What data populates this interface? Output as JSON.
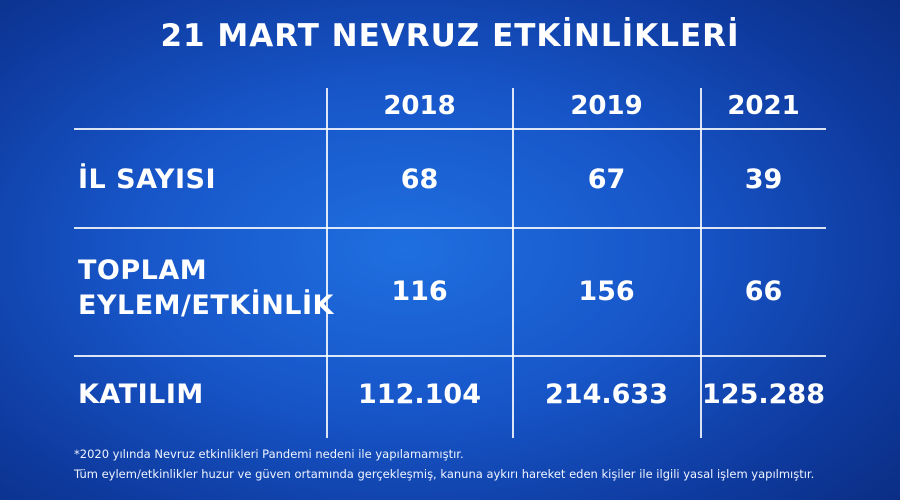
{
  "title": "21 MART NEVRUZ ETKİNLİKLERİ",
  "chart_data": {
    "type": "table",
    "columns": [
      "2018",
      "2019",
      "2021"
    ],
    "rows": [
      {
        "label": "İL SAYISI",
        "values": [
          "68",
          "67",
          "39"
        ]
      },
      {
        "label_lines": [
          "TOPLAM",
          "EYLEM/ETKİNLİK"
        ],
        "values": [
          "116",
          "156",
          "66"
        ]
      },
      {
        "label": "KATILIM",
        "values": [
          "112.104",
          "214.633",
          "125.288"
        ]
      }
    ]
  },
  "footnotes": [
    "*2020 yılında Nevruz etkinlikleri Pandemi nedeni ile yapılamamıştır.",
    "Tüm eylem/etkinlikler huzur ve güven ortamında gerçekleşmiş, kanuna aykırı hareket eden kişiler ile ilgili yasal işlem yapılmıştır."
  ],
  "colors": {
    "background_center": "#1f6fe0",
    "background_edge": "#0a2c80",
    "text": "#ffffff"
  }
}
